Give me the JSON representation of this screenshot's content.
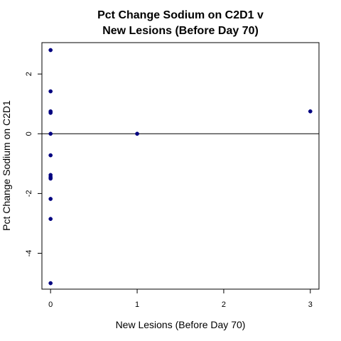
{
  "chart_data": {
    "type": "scatter",
    "title_line1": "Pct Change Sodium on C2D1 v",
    "title_line2": "New Lesions (Before Day 70)",
    "xlabel": "New Lesions (Before Day 70)",
    "ylabel": "Pct Change Sodium on C2D1",
    "xlim": [
      -0.1,
      3.1
    ],
    "ylim": [
      -5.2,
      3.05
    ],
    "xticks": [
      0,
      1,
      2,
      3
    ],
    "xtick_labels": [
      "0",
      "1",
      "2",
      "3"
    ],
    "yticks": [
      -4,
      -2,
      0,
      2
    ],
    "ytick_labels": [
      "-4",
      "-2",
      "0",
      "2"
    ],
    "reference_line_y": 0,
    "point_color": "#000080",
    "points": [
      {
        "x": 0,
        "y": 2.8
      },
      {
        "x": 0,
        "y": 1.42
      },
      {
        "x": 0,
        "y": 0.75
      },
      {
        "x": 0,
        "y": 0.7
      },
      {
        "x": 0,
        "y": 0.0
      },
      {
        "x": 0,
        "y": -0.72
      },
      {
        "x": 0,
        "y": -1.38
      },
      {
        "x": 0,
        "y": -1.45
      },
      {
        "x": 0,
        "y": -1.5
      },
      {
        "x": 0,
        "y": -2.18
      },
      {
        "x": 0,
        "y": -2.85
      },
      {
        "x": 0,
        "y": -5.0
      },
      {
        "x": 1,
        "y": 0.0
      },
      {
        "x": 3,
        "y": 0.75
      }
    ]
  }
}
